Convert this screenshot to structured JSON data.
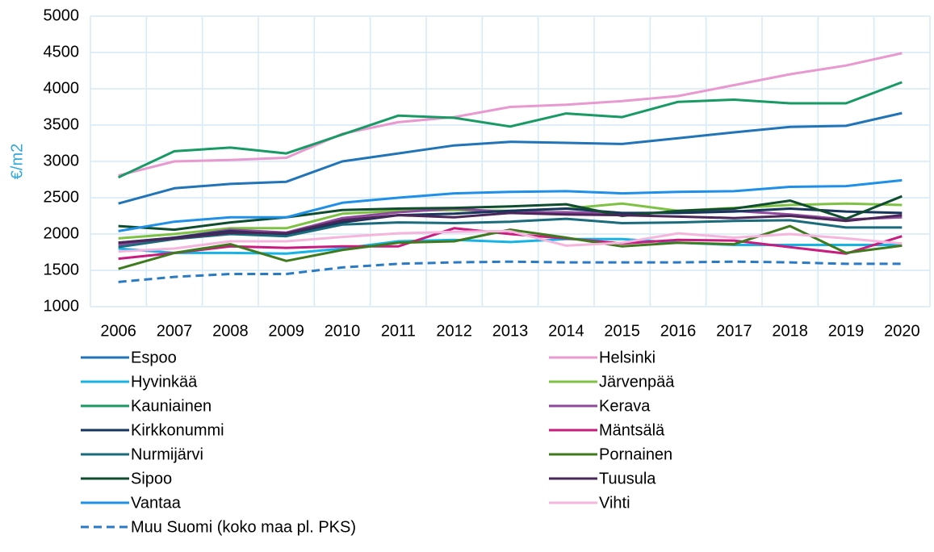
{
  "chart_data": {
    "type": "line",
    "y_label": "€/m2",
    "categories": [
      "2006",
      "2007",
      "2008",
      "2009",
      "2010",
      "2011",
      "2012",
      "2013",
      "2014",
      "2015",
      "2016",
      "2017",
      "2018",
      "2019",
      "2020"
    ],
    "ylim": [
      1000,
      5000
    ],
    "yticks": [
      1000,
      1500,
      2000,
      2500,
      3000,
      3500,
      4000,
      4500,
      5000
    ],
    "grid": true,
    "legend": "bottom",
    "series": [
      {
        "name": "Espoo",
        "color": "#2174b8",
        "values": [
          2420,
          2630,
          2690,
          2720,
          3000,
          3110,
          3220,
          3270,
          3255,
          3240,
          3320,
          3400,
          3475,
          3490,
          3665
        ]
      },
      {
        "name": "Helsinki",
        "color": "#e899cf",
        "values": [
          2806,
          3000,
          3020,
          3050,
          3380,
          3540,
          3610,
          3750,
          3780,
          3830,
          3900,
          4050,
          4200,
          4320,
          4490
        ]
      },
      {
        "name": "Hyvinkää",
        "color": "#16b4e6",
        "values": [
          1800,
          1740,
          1740,
          1730,
          1800,
          1900,
          1920,
          1890,
          1930,
          1930,
          1880,
          1850,
          1850,
          1850,
          1850
        ]
      },
      {
        "name": "Järvenpää",
        "color": "#7dc242",
        "values": [
          1940,
          2000,
          2080,
          2080,
          2280,
          2320,
          2330,
          2320,
          2350,
          2420,
          2320,
          2360,
          2400,
          2420,
          2400
        ]
      },
      {
        "name": "Kauniainen",
        "color": "#179a63",
        "values": [
          2780,
          3140,
          3190,
          3110,
          3370,
          3630,
          3600,
          3480,
          3660,
          3610,
          3820,
          3850,
          3800,
          3800,
          4090
        ]
      },
      {
        "name": "Kerava",
        "color": "#8f4a9e",
        "values": [
          1850,
          1950,
          2060,
          2020,
          2220,
          2300,
          2350,
          2300,
          2300,
          2280,
          2300,
          2320,
          2270,
          2200,
          2230
        ]
      },
      {
        "name": "Kirkkonummi",
        "color": "#16365c",
        "values": [
          1880,
          1950,
          2040,
          1990,
          2160,
          2260,
          2280,
          2320,
          2350,
          2290,
          2290,
          2310,
          2350,
          2310,
          2290
        ]
      },
      {
        "name": "Mäntsälä",
        "color": "#c81d7f",
        "values": [
          1660,
          1740,
          1830,
          1810,
          1830,
          1830,
          2080,
          2000,
          1940,
          1870,
          1920,
          1910,
          1820,
          1730,
          1970
        ]
      },
      {
        "name": "Nurmijärvi",
        "color": "#1a6b7c",
        "values": [
          1820,
          1930,
          2000,
          1970,
          2130,
          2160,
          2150,
          2170,
          2210,
          2150,
          2160,
          2180,
          2190,
          2090,
          2090
        ]
      },
      {
        "name": "Pornainen",
        "color": "#3f7a1e",
        "values": [
          1520,
          1740,
          1860,
          1630,
          1780,
          1880,
          1900,
          2060,
          1950,
          1830,
          1880,
          1860,
          2110,
          1740,
          1840
        ]
      },
      {
        "name": "Sipoo",
        "color": "#0f4d2f",
        "values": [
          2110,
          2060,
          2160,
          2230,
          2330,
          2350,
          2360,
          2380,
          2410,
          2250,
          2320,
          2350,
          2460,
          2210,
          2520
        ]
      },
      {
        "name": "Tuusula",
        "color": "#4a2758",
        "values": [
          1880,
          1940,
          2020,
          2010,
          2190,
          2260,
          2230,
          2290,
          2270,
          2260,
          2240,
          2220,
          2250,
          2180,
          2260
        ]
      },
      {
        "name": "Vantaa",
        "color": "#1e90e8",
        "values": [
          2040,
          2170,
          2230,
          2230,
          2430,
          2500,
          2560,
          2580,
          2590,
          2560,
          2580,
          2590,
          2650,
          2660,
          2740
        ]
      },
      {
        "name": "Vihti",
        "color": "#f5b5dc",
        "values": [
          1760,
          1800,
          1900,
          1900,
          1960,
          2010,
          2030,
          2040,
          1840,
          1880,
          2010,
          1950,
          2000,
          1940,
          1870
        ]
      },
      {
        "name": "Muu Suomi (koko maa pl. PKS)",
        "color": "#2a7bc4",
        "dashed": true,
        "values": [
          1340,
          1410,
          1450,
          1450,
          1540,
          1590,
          1610,
          1620,
          1610,
          1610,
          1610,
          1620,
          1610,
          1590,
          1590
        ]
      }
    ]
  }
}
